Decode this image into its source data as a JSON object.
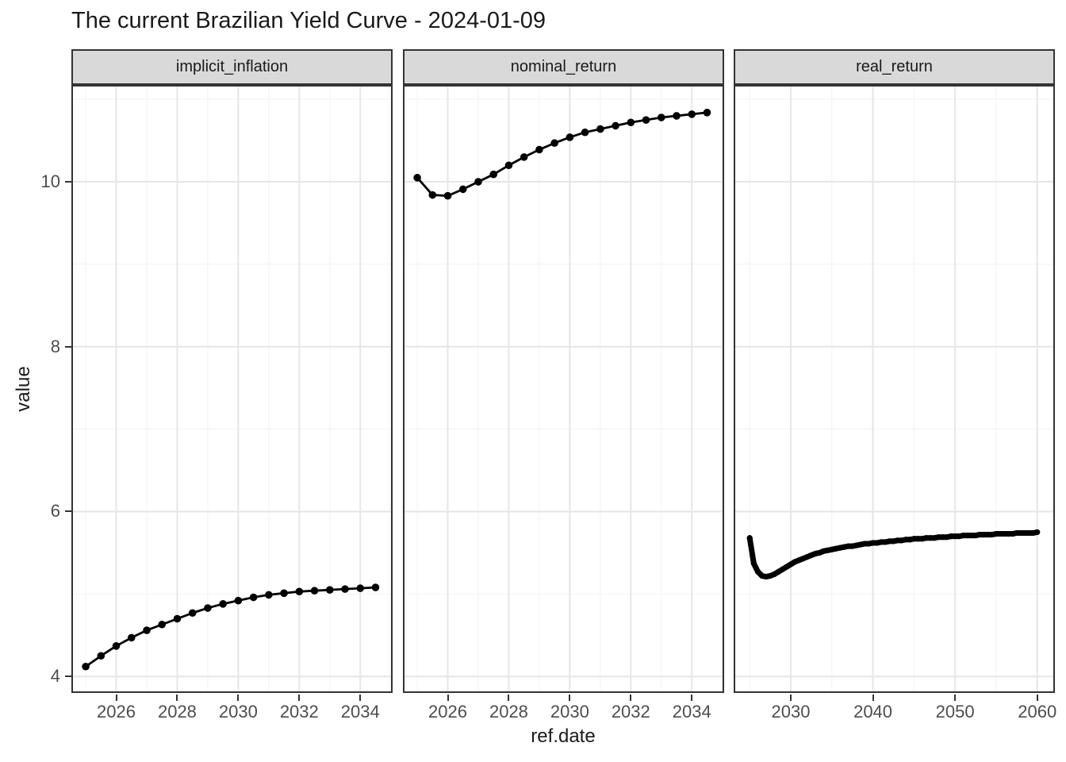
{
  "title": "The current Brazilian Yield Curve - 2024-01-09",
  "colors": {
    "series": "#000000",
    "strip_background": "#D9D9D9",
    "panel_border": "#333333",
    "grid_major": "#E6E6E6",
    "grid_minor": "#F2F2F2",
    "tick_mark": "#333333",
    "axis_text": "#4d4d4d",
    "title_text": "#1a1a1a"
  },
  "chart_data": {
    "type": "line",
    "title": "The current Brazilian Yield Curve - 2024-01-09",
    "xlabel": "ref.date",
    "ylabel": "value",
    "grid": true,
    "legend": "none",
    "ylim": [
      3.8,
      11.175
    ],
    "y_ticks": [
      4,
      6,
      8,
      10
    ],
    "y_minor": [
      5,
      7,
      9,
      11
    ],
    "facets": [
      {
        "label": "implicit_inflation",
        "xlim": [
          2024.53,
          2035.06
        ],
        "x_ticks": [
          2026,
          2028,
          2030,
          2032,
          2034
        ],
        "x_minor": [
          2025,
          2027,
          2029,
          2031,
          2033,
          2035
        ],
        "line_width": 2.8,
        "point_radius": 4.8,
        "x": [
          2025,
          2025.5,
          2026,
          2026.5,
          2027,
          2027.5,
          2028,
          2028.5,
          2029,
          2029.5,
          2030,
          2030.5,
          2031,
          2031.5,
          2032,
          2032.5,
          2033,
          2033.5,
          2034,
          2034.5
        ],
        "y": [
          4.12,
          4.25,
          4.37,
          4.47,
          4.56,
          4.63,
          4.7,
          4.77,
          4.83,
          4.88,
          4.92,
          4.96,
          4.99,
          5.01,
          5.03,
          5.04,
          5.05,
          5.06,
          5.07,
          5.08
        ]
      },
      {
        "label": "nominal_return",
        "xlim": [
          2024.53,
          2035.06
        ],
        "x_ticks": [
          2026,
          2028,
          2030,
          2032,
          2034
        ],
        "x_minor": [
          2025,
          2027,
          2029,
          2031,
          2033,
          2035
        ],
        "line_width": 2.8,
        "point_radius": 4.8,
        "x": [
          2025,
          2025.5,
          2026,
          2026.5,
          2027,
          2027.5,
          2028,
          2028.5,
          2029,
          2029.5,
          2030,
          2030.5,
          2031,
          2031.5,
          2032,
          2032.5,
          2033,
          2033.5,
          2034,
          2034.5
        ],
        "y": [
          10.05,
          9.84,
          9.83,
          9.91,
          10.0,
          10.09,
          10.2,
          10.3,
          10.39,
          10.47,
          10.54,
          10.6,
          10.64,
          10.68,
          10.72,
          10.75,
          10.78,
          10.8,
          10.82,
          10.84
        ]
      },
      {
        "label": "real_return",
        "xlim": [
          2023.05,
          2062.15
        ],
        "x_ticks": [
          2030,
          2040,
          2050,
          2060
        ],
        "x_minor": [
          2025,
          2035,
          2045,
          2055
        ],
        "line_width": 7,
        "point_radius": 3.6,
        "x": [
          2025,
          2025.5,
          2026,
          2026.5,
          2027,
          2027.5,
          2028,
          2028.5,
          2029,
          2029.5,
          2030,
          2030.5,
          2031,
          2031.5,
          2032,
          2032.5,
          2033,
          2033.5,
          2034,
          2034.5,
          2035,
          2035.5,
          2036,
          2036.5,
          2037,
          2037.5,
          2038,
          2038.5,
          2039,
          2039.5,
          2040,
          2040.5,
          2041,
          2041.5,
          2042,
          2042.5,
          2043,
          2043.5,
          2044,
          2044.5,
          2045,
          2045.5,
          2046,
          2046.5,
          2047,
          2047.5,
          2048,
          2048.5,
          2049,
          2049.5,
          2050,
          2050.5,
          2051,
          2051.5,
          2052,
          2052.5,
          2053,
          2053.5,
          2054,
          2054.5,
          2055,
          2055.5,
          2056,
          2056.5,
          2057,
          2057.5,
          2058,
          2058.5,
          2059,
          2059.5,
          2060
        ],
        "y": [
          5.68,
          5.37,
          5.27,
          5.22,
          5.21,
          5.22,
          5.24,
          5.27,
          5.3,
          5.33,
          5.36,
          5.39,
          5.41,
          5.43,
          5.45,
          5.47,
          5.49,
          5.5,
          5.52,
          5.53,
          5.54,
          5.55,
          5.56,
          5.57,
          5.58,
          5.58,
          5.59,
          5.6,
          5.61,
          5.61,
          5.62,
          5.62,
          5.63,
          5.63,
          5.64,
          5.64,
          5.65,
          5.65,
          5.66,
          5.66,
          5.67,
          5.67,
          5.67,
          5.68,
          5.68,
          5.68,
          5.69,
          5.69,
          5.69,
          5.7,
          5.7,
          5.7,
          5.71,
          5.71,
          5.71,
          5.71,
          5.72,
          5.72,
          5.72,
          5.72,
          5.73,
          5.73,
          5.73,
          5.73,
          5.73,
          5.74,
          5.74,
          5.74,
          5.74,
          5.74,
          5.75
        ]
      }
    ]
  }
}
